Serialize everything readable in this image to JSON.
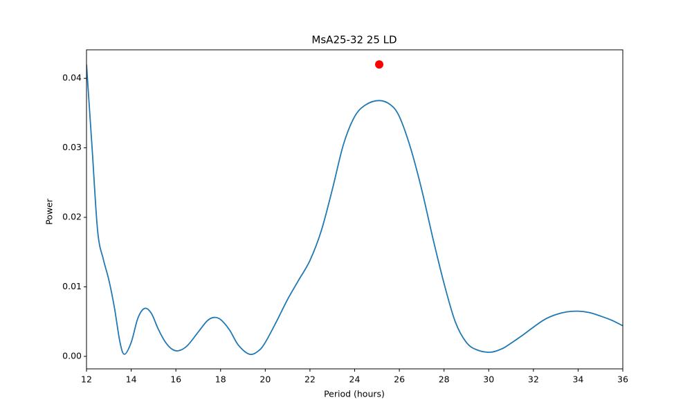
{
  "chart_data": {
    "type": "line",
    "title": "MsA25-32 25 LD",
    "xlabel": "Period (hours)",
    "ylabel": "Power",
    "xlim": [
      12,
      36
    ],
    "xticks": [
      12,
      14,
      16,
      18,
      20,
      22,
      24,
      26,
      28,
      30,
      32,
      34,
      36
    ],
    "ylim": [
      -0.0018,
      0.0441
    ],
    "yticks": [
      {
        "value": 0,
        "label": "0.00"
      },
      0.01,
      0.02,
      0.03,
      0.04
    ],
    "series": [
      {
        "style": "line",
        "color": "#1f77b4",
        "x": [
          12,
          12.25,
          12.5,
          12.75,
          13,
          13.25,
          13.5,
          13.7,
          14,
          14.3,
          14.6,
          14.9,
          15.2,
          15.5,
          15.8,
          16.1,
          16.5,
          17,
          17.4,
          17.7,
          18,
          18.4,
          18.8,
          19.3,
          19.7,
          20,
          20.5,
          21,
          21.5,
          22,
          22.5,
          23,
          23.5,
          24,
          24.5,
          25.1,
          25.6,
          26,
          26.5,
          27,
          27.5,
          28,
          28.5,
          29,
          29.5,
          30.1,
          30.6,
          31,
          31.5,
          32,
          32.5,
          33,
          33.5,
          34,
          34.5,
          35,
          35.5,
          36
        ],
        "values": [
          0.042,
          0.03,
          0.018,
          0.014,
          0.011,
          0.007,
          0.002,
          0.0003,
          0.002,
          0.0055,
          0.0069,
          0.0062,
          0.004,
          0.0022,
          0.0011,
          0.0008,
          0.0015,
          0.0035,
          0.0051,
          0.0056,
          0.0053,
          0.0038,
          0.0016,
          0.0003,
          0.0008,
          0.002,
          0.005,
          0.0082,
          0.011,
          0.0138,
          0.018,
          0.024,
          0.0305,
          0.0345,
          0.0362,
          0.0368,
          0.0362,
          0.0345,
          0.03,
          0.024,
          0.017,
          0.0105,
          0.005,
          0.002,
          0.0009,
          0.0006,
          0.0011,
          0.0019,
          0.003,
          0.0042,
          0.0053,
          0.006,
          0.0064,
          0.0065,
          0.0063,
          0.0058,
          0.0052,
          0.0044
        ]
      },
      {
        "style": "scatter",
        "color": "#ff0000",
        "x": [
          25.1
        ],
        "values": [
          0.042
        ]
      }
    ]
  }
}
